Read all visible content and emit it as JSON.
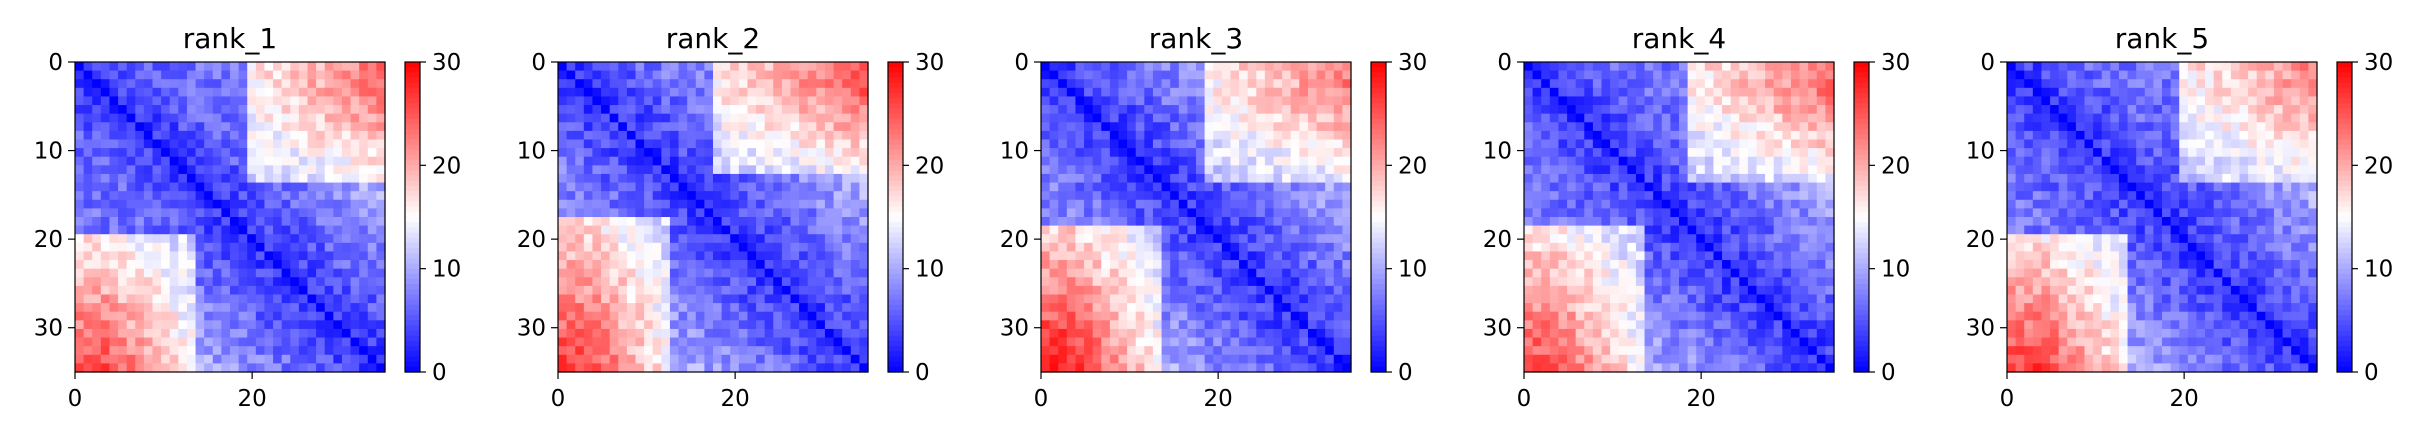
{
  "figure": {
    "background": "#ffffff"
  },
  "chart_data": [
    {
      "type": "heatmap",
      "title": "rank_1",
      "matrix_size": 36,
      "x_ticks": [
        0,
        20
      ],
      "y_ticks": [
        0,
        10,
        20,
        30
      ],
      "xlim": [
        0,
        35
      ],
      "ylim": [
        35,
        0
      ],
      "colorbar": {
        "colormap": "bwr",
        "min": 0,
        "max": 30,
        "ticks": [
          0,
          10,
          20,
          30
        ]
      },
      "value_model": {
        "description": "distance matrix: near-zero on diagonal, block structure with high values in lower-left corner",
        "diagonal": 0,
        "near_diagonal_min": 3,
        "near_diagonal_max": 10,
        "upper_left_block": 5,
        "lower_left_corner": 26,
        "upper_right_corner": 24,
        "block_boundary": 20
      }
    },
    {
      "type": "heatmap",
      "title": "rank_2",
      "matrix_size": 36,
      "x_ticks": [
        0,
        20
      ],
      "y_ticks": [
        0,
        10,
        20,
        30
      ],
      "xlim": [
        0,
        35
      ],
      "ylim": [
        35,
        0
      ],
      "colorbar": {
        "colormap": "bwr",
        "min": 0,
        "max": 30,
        "ticks": [
          0,
          10,
          20,
          30
        ]
      },
      "value_model": {
        "description": "distance matrix: near-zero on diagonal, block structure with high values in lower-left corner",
        "diagonal": 0,
        "near_diagonal_min": 3,
        "near_diagonal_max": 11,
        "upper_left_block": 6,
        "lower_left_corner": 27,
        "upper_right_corner": 25,
        "block_boundary": 18
      }
    },
    {
      "type": "heatmap",
      "title": "rank_3",
      "matrix_size": 36,
      "x_ticks": [
        0,
        20
      ],
      "y_ticks": [
        0,
        10,
        20,
        30
      ],
      "xlim": [
        0,
        35
      ],
      "ylim": [
        35,
        0
      ],
      "colorbar": {
        "colormap": "bwr",
        "min": 0,
        "max": 30,
        "ticks": [
          0,
          10,
          20,
          30
        ]
      },
      "value_model": {
        "description": "distance matrix: near-zero on diagonal, block structure with high values in lower-left corner",
        "diagonal": 0,
        "near_diagonal_min": 3,
        "near_diagonal_max": 11,
        "upper_left_block": 6,
        "lower_left_corner": 29,
        "upper_right_corner": 23,
        "block_boundary": 19
      }
    },
    {
      "type": "heatmap",
      "title": "rank_4",
      "matrix_size": 36,
      "x_ticks": [
        0,
        20
      ],
      "y_ticks": [
        0,
        10,
        20,
        30
      ],
      "xlim": [
        0,
        35
      ],
      "ylim": [
        35,
        0
      ],
      "colorbar": {
        "colormap": "bwr",
        "min": 0,
        "max": 30,
        "ticks": [
          0,
          10,
          20,
          30
        ]
      },
      "value_model": {
        "description": "distance matrix: near-zero on diagonal, block structure with high values in lower-left corner",
        "diagonal": 0,
        "near_diagonal_min": 3,
        "near_diagonal_max": 10,
        "upper_left_block": 5,
        "lower_left_corner": 26,
        "upper_right_corner": 24,
        "block_boundary": 19
      }
    },
    {
      "type": "heatmap",
      "title": "rank_5",
      "matrix_size": 36,
      "x_ticks": [
        0,
        20
      ],
      "y_ticks": [
        0,
        10,
        20,
        30
      ],
      "xlim": [
        0,
        35
      ],
      "ylim": [
        35,
        0
      ],
      "colorbar": {
        "colormap": "bwr",
        "min": 0,
        "max": 30,
        "ticks": [
          0,
          10,
          20,
          30
        ]
      },
      "value_model": {
        "description": "distance matrix: near-zero on diagonal, block structure with high values in lower-left corner",
        "diagonal": 0,
        "near_diagonal_min": 3,
        "near_diagonal_max": 10,
        "upper_left_block": 5,
        "lower_left_corner": 27,
        "upper_right_corner": 22,
        "block_boundary": 20
      }
    }
  ]
}
